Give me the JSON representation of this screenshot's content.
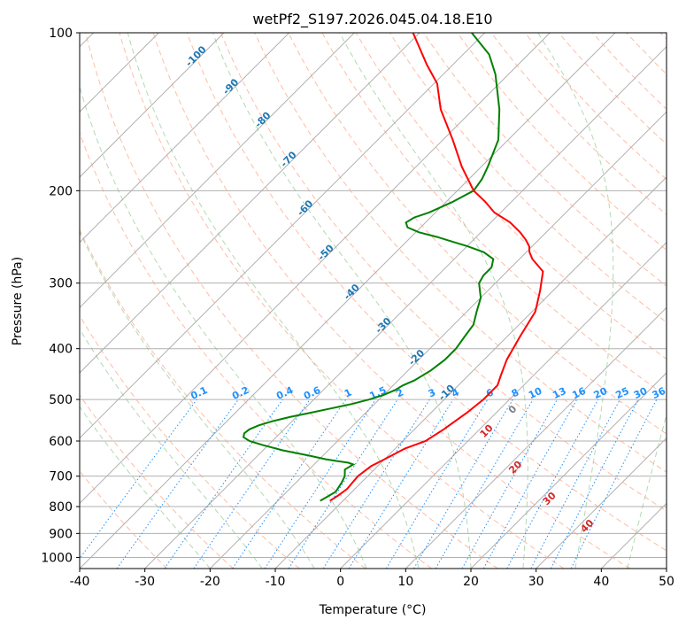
{
  "chart_data": {
    "type": "skew-t",
    "title": "wetPf2_S197.2026.045.04.18.E10",
    "xlabel": "Temperature (°C)",
    "ylabel": "Pressure (hPa)",
    "xlim": [
      -40,
      50
    ],
    "ylim": [
      1050,
      100
    ],
    "x_ticks": [
      -40,
      -30,
      -20,
      -10,
      0,
      10,
      20,
      30,
      40,
      50
    ],
    "y_ticks": [
      1000,
      900,
      800,
      700,
      600,
      500,
      400,
      300,
      200,
      100
    ],
    "colors": {
      "temperature": "#ff0000",
      "dewpoint": "#008000",
      "isotherm_label": "#1f77b4",
      "moist_adiabat_label": "#d62728",
      "mixing_ratio_label": "#1e90ff",
      "lcl_label": "#808080",
      "grid": "#b0b0b0"
    },
    "temperature": {
      "name": "Temperature",
      "pressure": [
        780,
        760,
        740,
        700,
        670,
        650,
        620,
        600,
        570,
        530,
        500,
        470,
        450,
        420,
        380,
        340,
        310,
        285,
        270,
        262,
        255,
        248,
        240,
        230,
        220,
        210,
        200,
        180,
        160,
        140,
        125,
        115,
        100
      ],
      "temp": [
        -12,
        -11.5,
        -11.2,
        -11.5,
        -11.0,
        -10.0,
        -8.5,
        -6.5,
        -5.5,
        -4.5,
        -4.0,
        -4.0,
        -5.0,
        -6.5,
        -8.0,
        -9.5,
        -12.0,
        -14.5,
        -18.0,
        -19.5,
        -20.5,
        -22.0,
        -24.0,
        -27.0,
        -31.0,
        -34.0,
        -37.5,
        -43.0,
        -48.5,
        -55.0,
        -59.5,
        -64.0,
        -71.0
      ]
    },
    "dewpoint": {
      "name": "Dewpoint",
      "pressure": [
        780,
        765,
        750,
        720,
        700,
        680,
        665,
        660,
        655,
        650,
        640,
        625,
        610,
        600,
        590,
        580,
        570,
        560,
        550,
        540,
        530,
        520,
        510,
        500,
        490,
        480,
        470,
        460,
        440,
        420,
        400,
        380,
        360,
        340,
        320,
        300,
        290,
        280,
        270,
        262,
        255,
        250,
        245,
        240,
        235,
        230,
        225,
        220,
        210,
        200,
        190,
        180,
        160,
        140,
        120,
        110,
        100
      ],
      "temp": [
        -13.5,
        -13.0,
        -12.5,
        -13.0,
        -13.5,
        -14.5,
        -14.0,
        -15.0,
        -17.0,
        -19.0,
        -22.0,
        -27.0,
        -31.0,
        -33.5,
        -35.0,
        -35.5,
        -35.3,
        -34.5,
        -33.0,
        -31.0,
        -28.5,
        -26.0,
        -23.5,
        -21.5,
        -20.0,
        -19.0,
        -18.5,
        -17.5,
        -16.5,
        -16.0,
        -16.0,
        -16.5,
        -17.0,
        -18.5,
        -20.0,
        -22.5,
        -23.0,
        -23.0,
        -24.0,
        -26.5,
        -30.0,
        -33.0,
        -36.0,
        -39.5,
        -42.0,
        -43.0,
        -42.5,
        -41.0,
        -39.0,
        -37.5,
        -38.0,
        -39.0,
        -41.5,
        -46.0,
        -52.0,
        -56.0,
        -62.0
      ]
    },
    "dry_adiabats": [
      -100,
      -90,
      -80,
      -70,
      -60,
      -50,
      -40,
      -30,
      -20,
      -10,
      0
    ],
    "moist_adiabats": [
      10,
      20,
      30,
      40
    ],
    "lcl_label": "0",
    "mixing_ratios": [
      0.1,
      0.2,
      0.4,
      0.6,
      1,
      1.5,
      2,
      3,
      4,
      6,
      8,
      10,
      13,
      16,
      20,
      25,
      30,
      36
    ],
    "mixing_ratio_labels": [
      "0.1",
      "0.2",
      "0.4",
      "0.6",
      "1",
      "1.5",
      "2",
      "3",
      "4",
      "6",
      "8",
      "10",
      "13",
      "16",
      "20",
      "25",
      "30",
      "36"
    ],
    "legend": "none"
  }
}
